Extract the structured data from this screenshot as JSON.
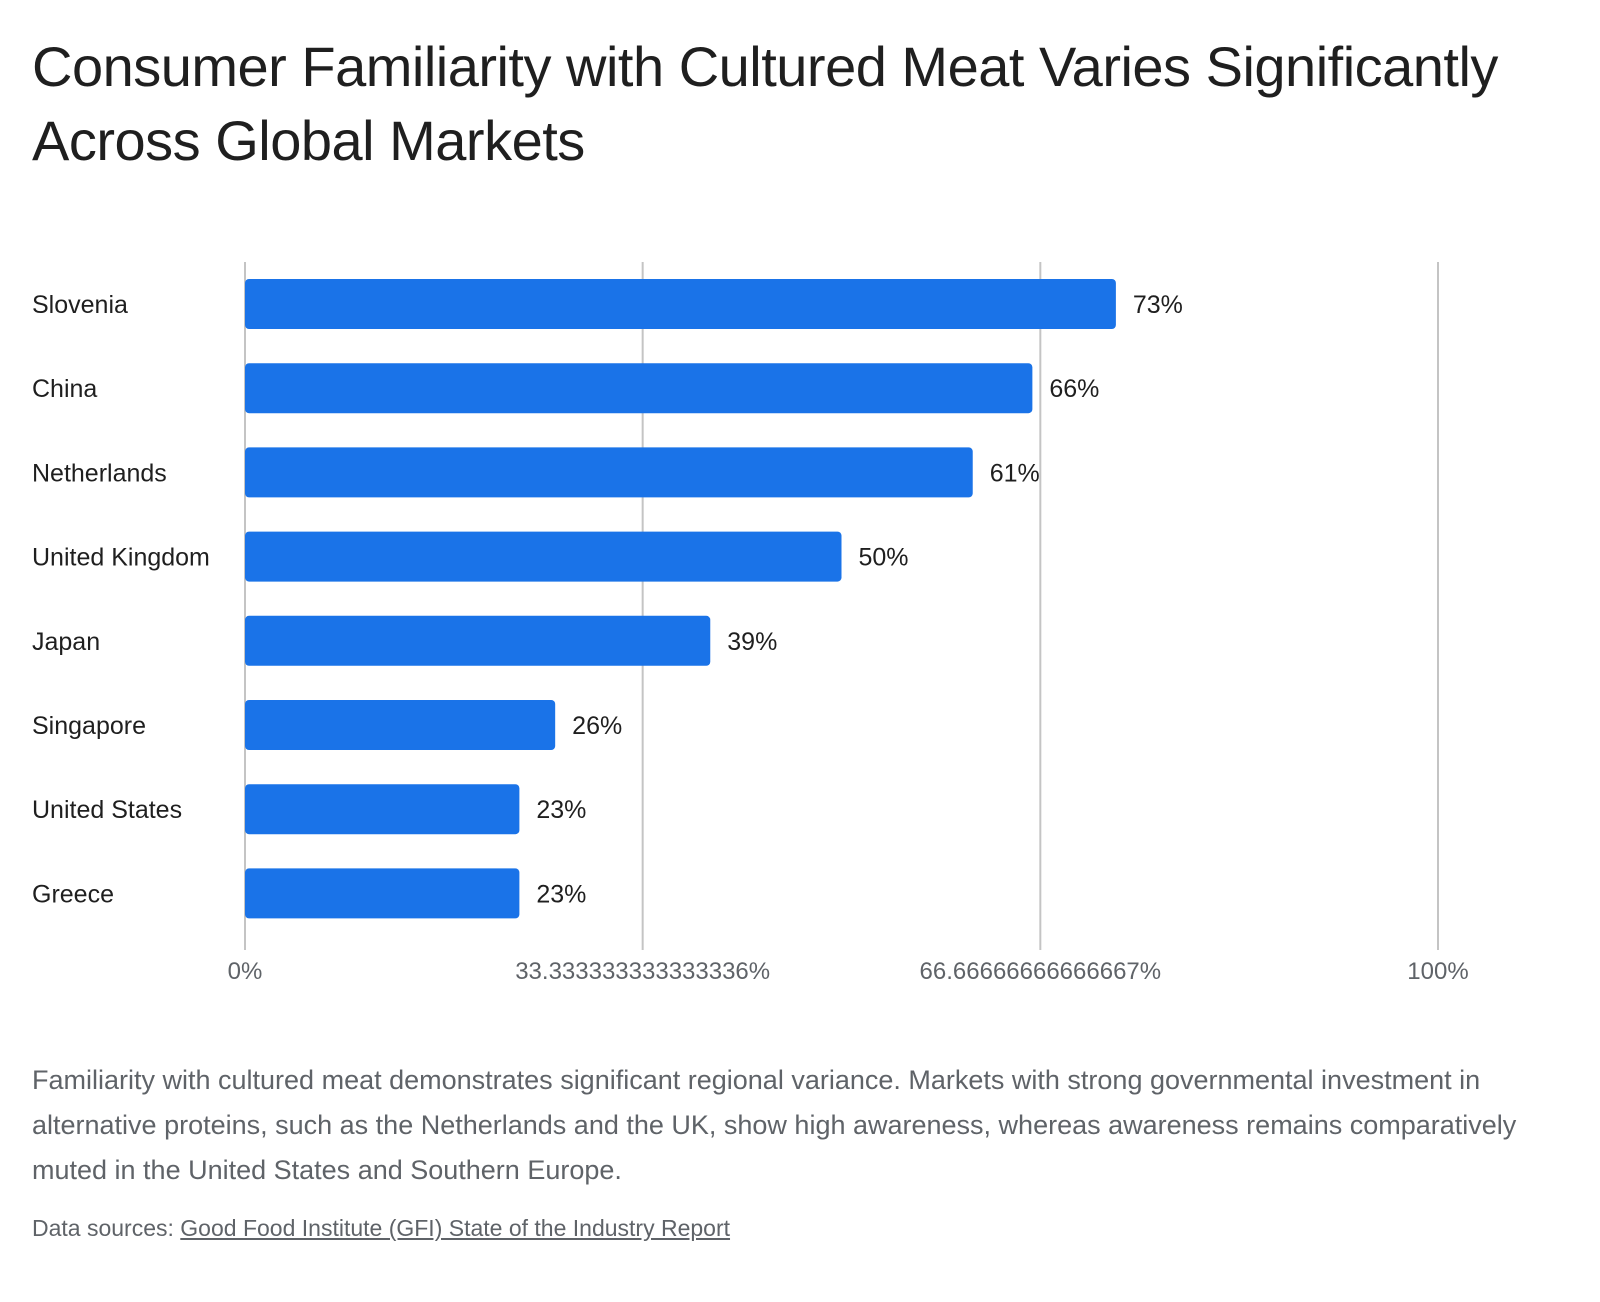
{
  "title": "Consumer Familiarity with Cultured Meat Varies Significantly Across Global Markets",
  "description": "Familiarity with cultured meat demonstrates significant regional variance. Markets with strong governmental investment in alternative proteins, such as the Netherlands and the UK, show high awareness, whereas awareness remains comparatively muted in the United States and Southern Europe.",
  "sources": {
    "prefix": "Data sources: ",
    "link_text": "Good Food Institute (GFI) State of the Industry Report"
  },
  "colors": {
    "bar": "#1a73e8",
    "grid": "#c4c4c4",
    "tick_text": "#5f6368",
    "label_text": "#1f1f1f"
  },
  "chart_data": {
    "type": "bar",
    "orientation": "horizontal",
    "categories": [
      "Slovenia",
      "China",
      "Netherlands",
      "United Kingdom",
      "Japan",
      "Singapore",
      "United States",
      "Greece"
    ],
    "values": [
      73,
      66,
      61,
      50,
      39,
      26,
      23,
      23
    ],
    "value_labels": [
      "73%",
      "66%",
      "61%",
      "50%",
      "39%",
      "26%",
      "23%",
      "23%"
    ],
    "xlim": [
      0,
      100
    ],
    "xticks": [
      0,
      33.333333333333336,
      66.66666666666667,
      100
    ],
    "xtick_labels": [
      "0%",
      "33.333333333333336%",
      "66.66666666666667%",
      "100%"
    ],
    "grid": true,
    "legend": "none"
  }
}
